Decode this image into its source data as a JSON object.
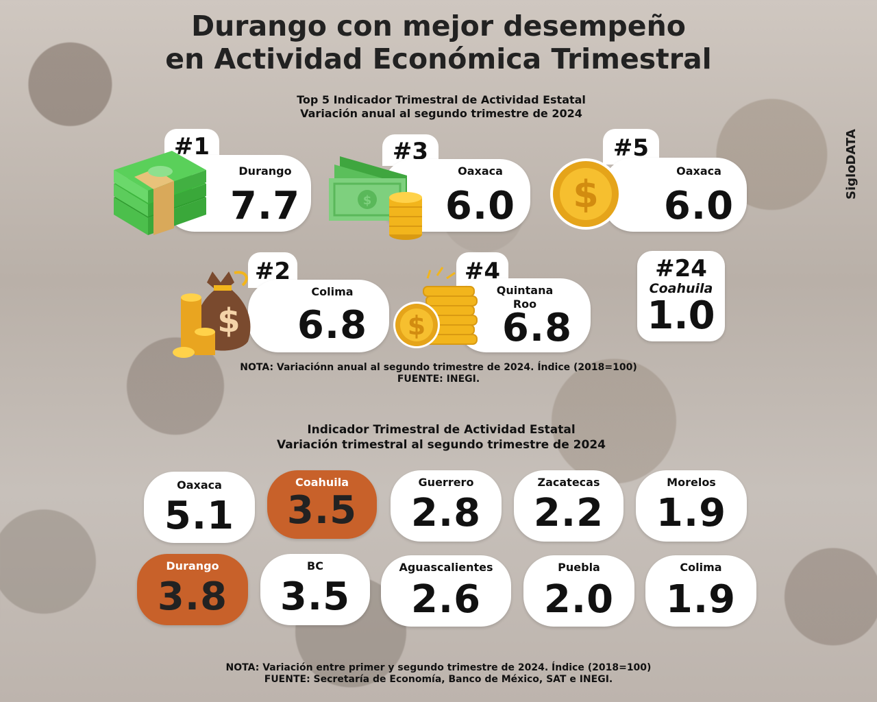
{
  "title_line1": "Durango con mejor desempeño",
  "title_line2": "en Actividad Económica Trimestral",
  "brand": "SigloDATA",
  "top5": {
    "subtitle_line1": "Top 5 Indicador Trimestral de Actividad Estatal",
    "subtitle_line2": "Variación anual al segundo trimestre de 2024",
    "items": [
      {
        "rank": "#1",
        "state": "Durango",
        "value": "7.7",
        "icon": "money-stack-icon"
      },
      {
        "rank": "#3",
        "state": "Oaxaca",
        "value": "6.0",
        "icon": "banknotes-coins-icon"
      },
      {
        "rank": "#5",
        "state": "Oaxaca",
        "value": "6.0",
        "icon": "gold-coin-icon"
      },
      {
        "rank": "#2",
        "state": "Colima",
        "value": "6.8",
        "icon": "money-bag-icon"
      },
      {
        "rank": "#4",
        "state": "Quintana Roo",
        "value": "6.8",
        "icon": "coin-stack-icon"
      }
    ],
    "extra": {
      "rank": "#24",
      "state": "Coahuila",
      "value": "1.0"
    },
    "note": "NOTA: Variaciónn anual al segundo trimestre de 2024. Índice (2018=100)",
    "source": "FUENTE: INEGI."
  },
  "quarterly": {
    "subtitle_line1": "Indicador Trimestral de Actividad Estatal",
    "subtitle_line2": "Variación trimestral al segundo trimestre de 2024",
    "items": [
      {
        "state": "Oaxaca",
        "value": "5.1",
        "highlight": false
      },
      {
        "state": "Coahuila",
        "value": "3.5",
        "highlight": true
      },
      {
        "state": "Guerrero",
        "value": "2.8",
        "highlight": false
      },
      {
        "state": "Zacatecas",
        "value": "2.2",
        "highlight": false
      },
      {
        "state": "Morelos",
        "value": "1.9",
        "highlight": false
      },
      {
        "state": "Durango",
        "value": "3.8",
        "highlight": true
      },
      {
        "state": "BC",
        "value": "3.5",
        "highlight": false
      },
      {
        "state": "Aguascalientes",
        "value": "2.6",
        "highlight": false
      },
      {
        "state": "Puebla",
        "value": "2.0",
        "highlight": false
      },
      {
        "state": "Colima",
        "value": "1.9",
        "highlight": false
      }
    ],
    "note": "NOTA: Variación entre primer y segundo trimestre de 2024. Índice (2018=100)",
    "source": "FUENTE: Secretaría de Economía, Banco de México, SAT e INEGI."
  },
  "colors": {
    "highlight": "#c8612a",
    "card": "#ffffff",
    "text": "#111111"
  }
}
